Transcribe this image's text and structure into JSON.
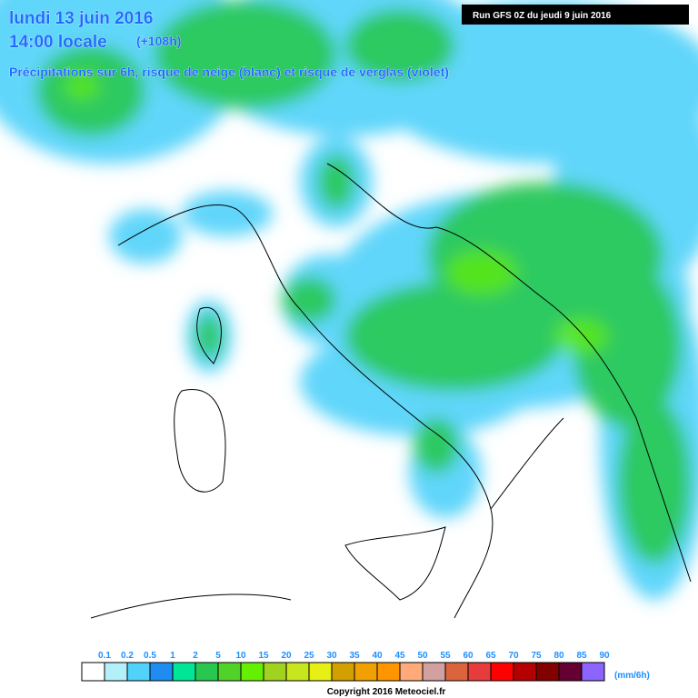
{
  "header": {
    "date": "lundi 13 juin 2016",
    "time": "14:00 locale",
    "lead": "(+108h)",
    "description": "Précipitations sur 6h, risque de neige (blanc) et risque de verglas (violet)",
    "run": "Run GFS 0Z du jeudi 9 juin 2016"
  },
  "legend": {
    "labels": [
      "0.1",
      "0.2",
      "0.5",
      "1",
      "2",
      "5",
      "10",
      "15",
      "20",
      "25",
      "30",
      "35",
      "40",
      "45",
      "50",
      "55",
      "60",
      "65",
      "70",
      "75",
      "80",
      "85",
      "90"
    ],
    "colors": [
      "#ffffff",
      "#b4f0fa",
      "#50d2fa",
      "#1e8cf0",
      "#00e696",
      "#28c850",
      "#50d228",
      "#64f000",
      "#a0d21e",
      "#c8e61e",
      "#e6f014",
      "#d2a000",
      "#f0a000",
      "#ff9600",
      "#ffaa78",
      "#d2a0a0",
      "#dc643c",
      "#e63c3c",
      "#ff0000",
      "#b40000",
      "#820000",
      "#640032",
      "#8c64ff"
    ],
    "unit": "(mm/6h)"
  },
  "footer": {
    "copyright": "Copyright 2016 Meteociel.fr"
  }
}
